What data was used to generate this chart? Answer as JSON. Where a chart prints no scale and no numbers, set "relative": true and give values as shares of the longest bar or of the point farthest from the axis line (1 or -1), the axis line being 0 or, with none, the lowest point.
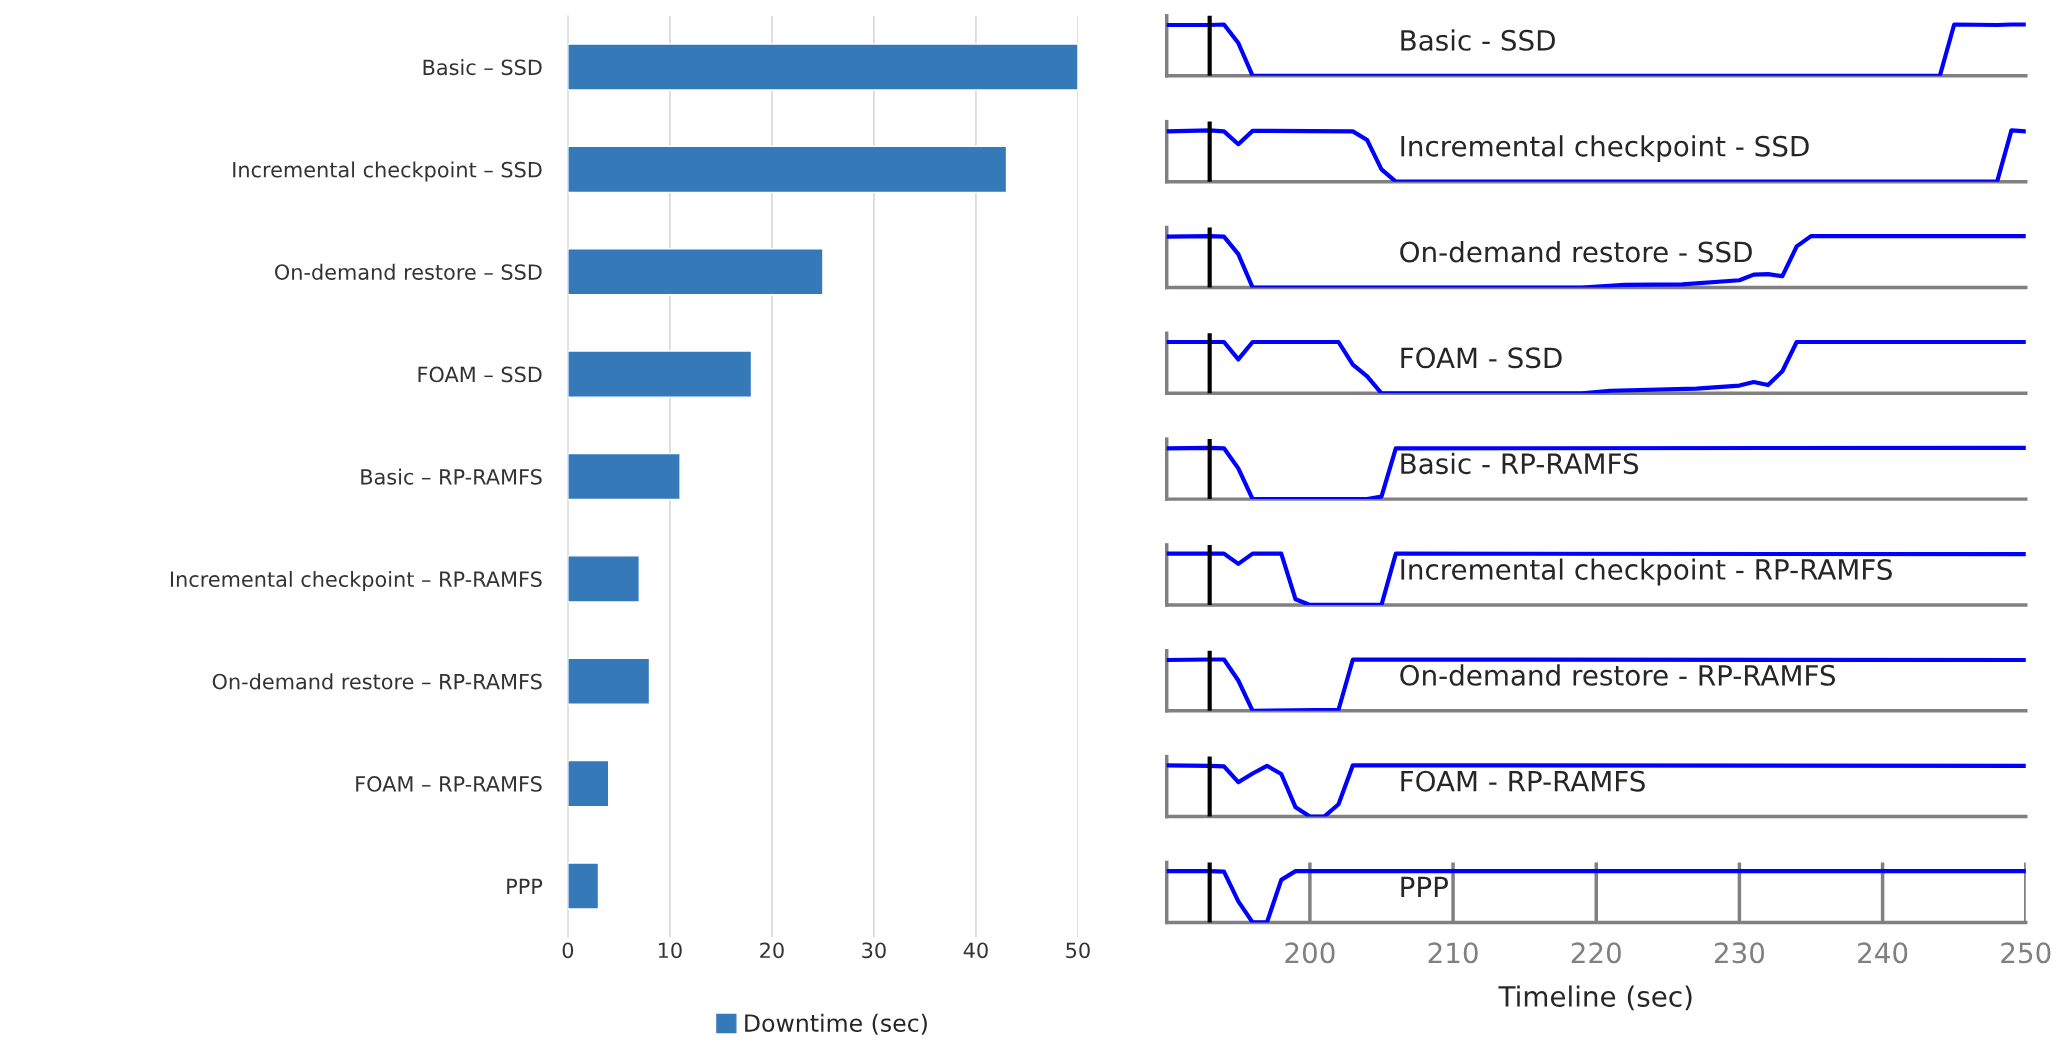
{
  "chart_data": [
    {
      "type": "bar",
      "orientation": "horizontal",
      "categories": [
        "Basic – SSD",
        "Incremental checkpoint – SSD",
        "On-demand restore – SSD",
        "FOAM – SSD",
        "Basic – RP-RAMFS",
        "Incremental checkpoint – RP-RAMFS",
        "On-demand restore – RP-RAMFS",
        "FOAM – RP-RAMFS",
        "PPP"
      ],
      "series": [
        {
          "name": "Downtime (sec)",
          "color": "#3579b9",
          "values": [
            50,
            43,
            25,
            18,
            11,
            7,
            8,
            4,
            3
          ]
        }
      ],
      "xlim": [
        0,
        50
      ],
      "xticks": [
        0,
        10,
        20,
        30,
        40,
        50
      ],
      "grid": "x",
      "legend": "bottom"
    },
    {
      "type": "line",
      "relative": true,
      "title": "Basic - SSD",
      "xlim": [
        190,
        250
      ],
      "tick_labels": false,
      "ref_lines": [
        {
          "axis": "x",
          "value": 193,
          "color": "#000000"
        }
      ],
      "series": [
        {
          "color": "#0000ff",
          "x": [
            190,
            193,
            194,
            195,
            196,
            244,
            245,
            248,
            249,
            250
          ],
          "values": [
            0.99,
            0.99,
            1,
            0.64,
            0,
            0,
            1,
            0.99,
            1,
            1
          ]
        }
      ]
    },
    {
      "type": "line",
      "relative": true,
      "title": "Incremental checkpoint - SSD",
      "xlim": [
        190,
        250
      ],
      "tick_labels": false,
      "ref_lines": [
        {
          "axis": "x",
          "value": 193,
          "color": "#000000"
        }
      ],
      "series": [
        {
          "color": "#0000ff",
          "x": [
            190,
            193,
            194,
            195,
            196,
            203,
            204,
            205,
            206,
            248,
            249,
            250
          ],
          "values": [
            0.98,
            1,
            0.98,
            0.73,
            0.99,
            0.98,
            0.81,
            0.24,
            0,
            0,
            1,
            0.98
          ]
        }
      ]
    },
    {
      "type": "line",
      "relative": true,
      "title": "On-demand restore - SSD",
      "xlim": [
        190,
        250
      ],
      "tick_labels": false,
      "ref_lines": [
        {
          "axis": "x",
          "value": 193,
          "color": "#000000"
        }
      ],
      "series": [
        {
          "color": "#0000ff",
          "x": [
            190,
            193,
            194,
            195,
            196,
            219,
            222,
            226,
            230,
            231,
            232,
            233,
            234,
            235,
            250
          ],
          "values": [
            0.99,
            1,
            0.99,
            0.65,
            0,
            0,
            0.05,
            0.06,
            0.14,
            0.25,
            0.26,
            0.22,
            0.8,
            1,
            1
          ]
        }
      ]
    },
    {
      "type": "line",
      "relative": true,
      "title": "FOAM - SSD",
      "xlim": [
        190,
        250
      ],
      "tick_labels": false,
      "ref_lines": [
        {
          "axis": "x",
          "value": 193,
          "color": "#000000"
        }
      ],
      "series": [
        {
          "color": "#0000ff",
          "x": [
            190,
            193,
            194,
            195,
            196,
            202,
            203,
            204,
            205,
            219,
            221,
            227,
            230,
            231,
            232,
            233,
            234,
            250
          ],
          "values": [
            1,
            1,
            1,
            0.66,
            1,
            1,
            0.56,
            0.33,
            0,
            0,
            0.05,
            0.09,
            0.15,
            0.22,
            0.16,
            0.43,
            1,
            1
          ]
        }
      ]
    },
    {
      "type": "line",
      "relative": true,
      "title": "Basic - RP-RAMFS",
      "xlim": [
        190,
        250
      ],
      "tick_labels": false,
      "ref_lines": [
        {
          "axis": "x",
          "value": 193,
          "color": "#000000"
        }
      ],
      "series": [
        {
          "color": "#0000ff",
          "x": [
            190,
            193,
            194,
            195,
            196,
            204,
            205,
            206,
            250
          ],
          "values": [
            0.99,
            1,
            0.99,
            0.6,
            0,
            0,
            0.05,
            0.99,
            1
          ]
        }
      ]
    },
    {
      "type": "line",
      "relative": true,
      "title": "Incremental checkpoint - RP-RAMFS",
      "xlim": [
        190,
        250
      ],
      "tick_labels": false,
      "ref_lines": [
        {
          "axis": "x",
          "value": 193,
          "color": "#000000"
        }
      ],
      "series": [
        {
          "color": "#0000ff",
          "x": [
            190,
            193,
            194,
            195,
            196,
            198,
            199,
            200,
            205,
            206,
            250
          ],
          "values": [
            1,
            1,
            1,
            0.8,
            1,
            1,
            0.11,
            0,
            0,
            1,
            0.99
          ]
        }
      ]
    },
    {
      "type": "line",
      "relative": true,
      "title": "On-demand restore - RP-RAMFS",
      "xlim": [
        190,
        250
      ],
      "tick_labels": false,
      "ref_lines": [
        {
          "axis": "x",
          "value": 193,
          "color": "#000000"
        }
      ],
      "series": [
        {
          "color": "#0000ff",
          "x": [
            190,
            193,
            194,
            195,
            196,
            202,
            203,
            250
          ],
          "values": [
            0.99,
            1,
            1,
            0.59,
            0,
            0.02,
            1,
            0.99
          ]
        }
      ]
    },
    {
      "type": "line",
      "relative": true,
      "title": "FOAM - RP-RAMFS",
      "xlim": [
        190,
        250
      ],
      "tick_labels": false,
      "ref_lines": [
        {
          "axis": "x",
          "value": 193,
          "color": "#000000"
        }
      ],
      "series": [
        {
          "color": "#0000ff",
          "x": [
            190,
            193,
            194,
            195,
            196,
            197,
            198,
            199,
            200,
            201,
            202,
            203,
            250
          ],
          "values": [
            1,
            0.99,
            0.98,
            0.67,
            0.84,
            0.99,
            0.83,
            0.18,
            0,
            0,
            0.24,
            1,
            0.99
          ]
        }
      ]
    },
    {
      "type": "line",
      "relative": true,
      "title": "PPP",
      "xlim": [
        190,
        250
      ],
      "xticks": [
        200,
        210,
        220,
        230,
        240,
        250
      ],
      "xlabel": "Timeline (sec)",
      "tick_labels": "x",
      "grid": "x",
      "ref_lines": [
        {
          "axis": "x",
          "value": 193,
          "color": "#000000"
        }
      ],
      "series": [
        {
          "color": "#0000ff",
          "x": [
            190,
            193,
            194,
            195,
            196,
            197,
            198,
            199,
            250
          ],
          "values": [
            1,
            1,
            0.99,
            0.41,
            0,
            0,
            0.83,
            1,
            1
          ]
        }
      ]
    }
  ]
}
